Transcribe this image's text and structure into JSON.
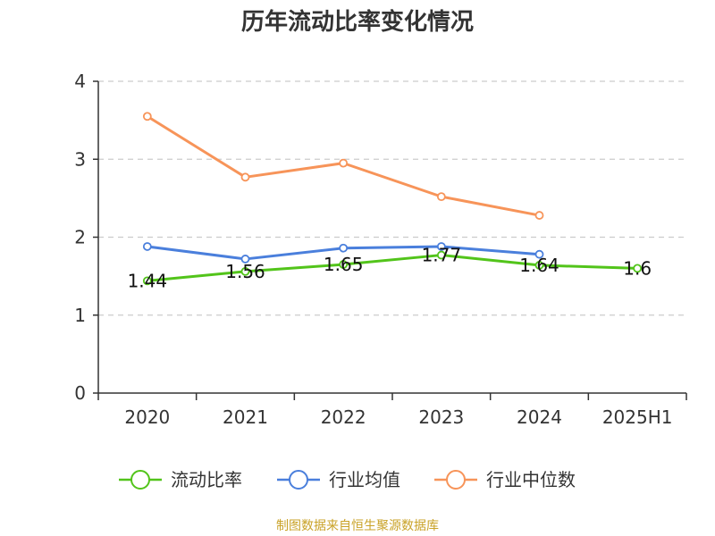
{
  "title": "历年流动比率变化情况",
  "source": "制图数据来自恒生聚源数据库",
  "chart_data": {
    "type": "line",
    "title": "历年流动比率变化情况",
    "categories": [
      "2020",
      "2021",
      "2022",
      "2023",
      "2024",
      "2025H1"
    ],
    "ylim": [
      0,
      4
    ],
    "yticks": [
      0,
      1,
      2,
      3,
      4
    ],
    "grid": true,
    "legend_position": "bottom",
    "series": [
      {
        "name": "流动比率",
        "color": "#52c41a",
        "values": [
          1.44,
          1.56,
          1.65,
          1.77,
          1.64,
          1.6
        ],
        "labels": [
          "1.44",
          "1.56",
          "1.65",
          "1.77",
          "1.64",
          "1.6"
        ]
      },
      {
        "name": "行业均值",
        "color": "#4a7fdc",
        "values": [
          1.88,
          1.72,
          1.86,
          1.88,
          1.78,
          null
        ]
      },
      {
        "name": "行业中位数",
        "color": "#f79459",
        "values": [
          3.55,
          2.77,
          2.95,
          2.52,
          2.28,
          null
        ]
      }
    ]
  }
}
